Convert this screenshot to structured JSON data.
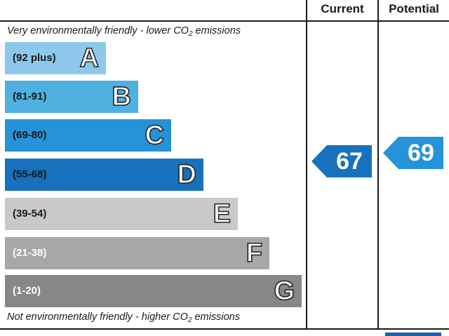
{
  "headers": {
    "current": "Current",
    "potential": "Potential"
  },
  "notes": {
    "top_prefix": "Very environmentally friendly - lower C",
    "top_sub": "O",
    "top_sub2": "2",
    "top_suffix": " emissions",
    "bottom_prefix": "Not environmentally friendly - higher C",
    "bottom_sub": "O",
    "bottom_sub2": "2",
    "bottom_suffix": " emissions"
  },
  "bands": [
    {
      "range": "(92 plus)",
      "letter": "A",
      "color": "#8dc8ec",
      "text_color": "#1a1a1a"
    },
    {
      "range": "(81-91)",
      "letter": "B",
      "color": "#4fb1e0",
      "text_color": "#1a1a1a"
    },
    {
      "range": "(69-80)",
      "letter": "C",
      "color": "#2593d8",
      "text_color": "#1a1a1a"
    },
    {
      "range": "(55-68)",
      "letter": "D",
      "color": "#1771bd",
      "text_color": "#1a1a1a"
    },
    {
      "range": "(39-54)",
      "letter": "E",
      "color": "#c9c9c9",
      "text_color": "#1a1a1a"
    },
    {
      "range": "(21-38)",
      "letter": "F",
      "color": "#a7a7a7",
      "text_color": "#ffffff"
    },
    {
      "range": "(1-20)",
      "letter": "G",
      "color": "#878787",
      "text_color": "#ffffff"
    }
  ],
  "ratings": {
    "current": {
      "value": "67",
      "color": "#1771bd"
    },
    "potential": {
      "value": "69",
      "color": "#2593d8"
    }
  }
}
